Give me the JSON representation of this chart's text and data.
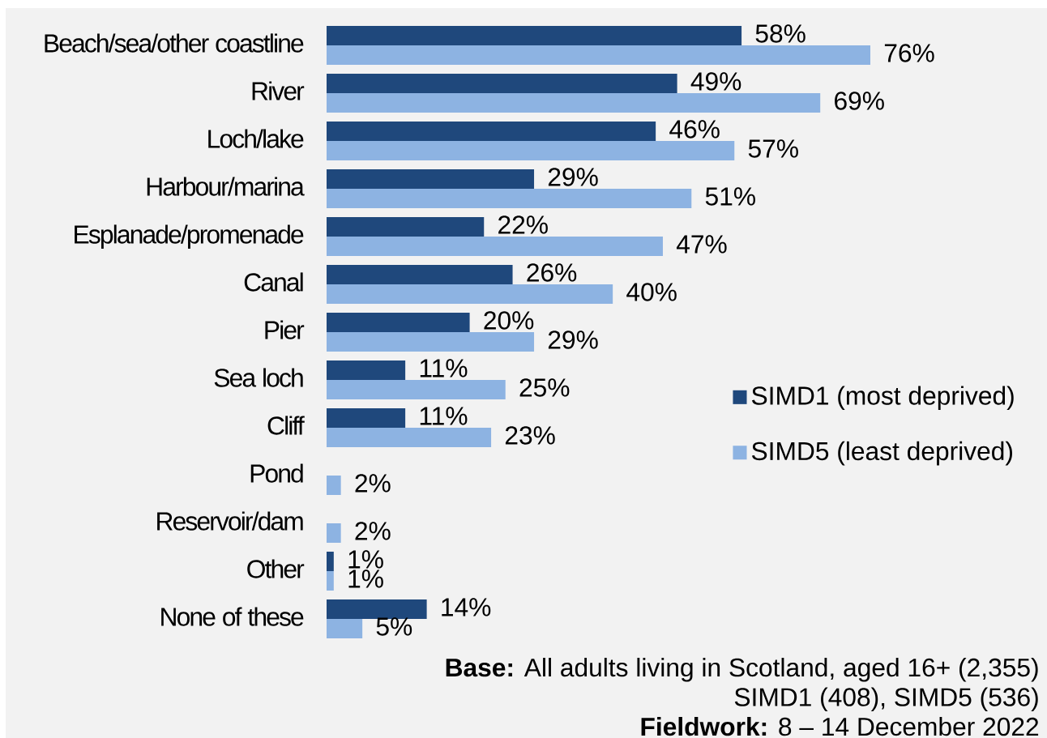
{
  "chart_data": {
    "type": "bar",
    "orientation": "horizontal",
    "categories": [
      "Beach/sea/other coastline",
      "River",
      "Loch/lake",
      "Harbour/marina",
      "Esplanade/promenade",
      "Canal",
      "Pier",
      "Sea loch",
      "Cliff",
      "Pond",
      "Reservoir/dam",
      "Other",
      "None of these"
    ],
    "series": [
      {
        "name": "SIMD1 (most deprived)",
        "color": "#1f487c",
        "values": [
          58,
          49,
          46,
          29,
          22,
          26,
          20,
          11,
          11,
          null,
          null,
          1,
          14
        ],
        "value_labels": [
          "58%",
          "49%",
          "46%",
          "29%",
          "22%",
          "26%",
          "20%",
          "11%",
          "11%",
          null,
          null,
          "1%",
          "14%"
        ]
      },
      {
        "name": "SIMD5 (least deprived)",
        "color": "#8db3e2",
        "values": [
          76,
          69,
          57,
          51,
          47,
          40,
          29,
          25,
          23,
          2,
          2,
          1,
          5
        ],
        "value_labels": [
          "76%",
          "69%",
          "57%",
          "51%",
          "47%",
          "40%",
          "29%",
          "25%",
          "23%",
          "2%",
          "2%",
          "1%",
          "5%"
        ]
      }
    ],
    "tick_labels": "y",
    "legend": "right",
    "annotations": [
      "**Base:** All adults living in Scotland, aged 16+ (2,355)",
      "SIMD1 (408), SIMD5 (536)",
      "**Fieldwork:** 8 – 14 December 2022"
    ]
  }
}
